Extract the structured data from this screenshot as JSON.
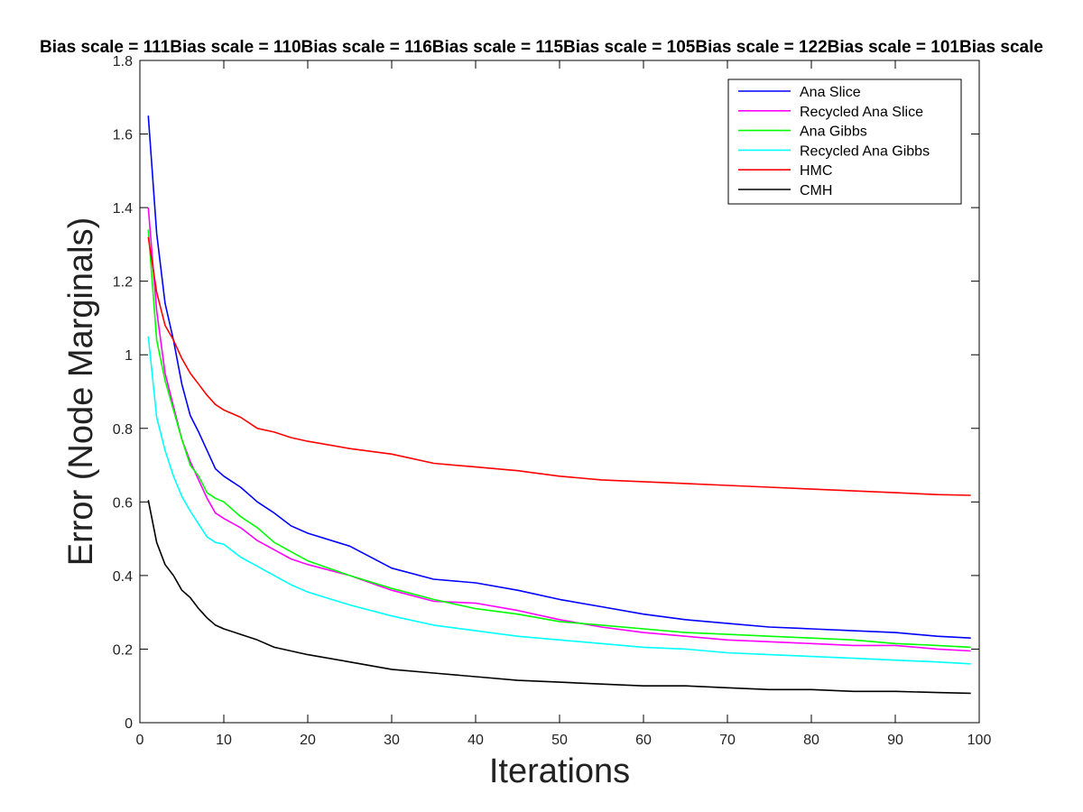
{
  "chart_data": {
    "type": "line",
    "title": "Bias scale = 111Bias scale = 110Bias scale = 116Bias scale = 115Bias scale = 105Bias scale = 122Bias scale = 101Bias scale",
    "xlabel": "Iterations",
    "ylabel": "Error (Node Marginals)",
    "xlim": [
      0,
      100
    ],
    "ylim": [
      0,
      1.8
    ],
    "xticks": [
      "0",
      "10",
      "20",
      "30",
      "40",
      "50",
      "60",
      "70",
      "80",
      "90",
      "100"
    ],
    "yticks": [
      "0",
      "0.2",
      "0.4",
      "0.6",
      "0.8",
      "1",
      "1.2",
      "1.4",
      "1.6",
      "1.8"
    ],
    "grid": false,
    "legend_position": "top-right",
    "x": [
      1,
      2,
      3,
      4,
      5,
      6,
      7,
      8,
      9,
      10,
      12,
      14,
      16,
      18,
      20,
      25,
      30,
      35,
      40,
      45,
      50,
      55,
      60,
      65,
      70,
      75,
      80,
      85,
      90,
      95,
      99
    ],
    "series": [
      {
        "name": "Ana Slice",
        "color": "#0000ff",
        "values": [
          1.65,
          1.33,
          1.14,
          1.04,
          0.92,
          0.835,
          0.79,
          0.74,
          0.69,
          0.67,
          0.64,
          0.6,
          0.57,
          0.535,
          0.515,
          0.48,
          0.42,
          0.39,
          0.38,
          0.36,
          0.335,
          0.315,
          0.295,
          0.28,
          0.27,
          0.26,
          0.255,
          0.25,
          0.245,
          0.235,
          0.23
        ]
      },
      {
        "name": "Recycled Ana Slice",
        "color": "#ff00ff",
        "values": [
          1.4,
          1.12,
          0.95,
          0.86,
          0.77,
          0.71,
          0.66,
          0.61,
          0.57,
          0.555,
          0.53,
          0.495,
          0.47,
          0.445,
          0.43,
          0.4,
          0.36,
          0.33,
          0.325,
          0.305,
          0.28,
          0.26,
          0.245,
          0.235,
          0.225,
          0.22,
          0.215,
          0.21,
          0.21,
          0.2,
          0.195
        ]
      },
      {
        "name": "Ana Gibbs",
        "color": "#00ff00",
        "values": [
          1.34,
          1.04,
          0.93,
          0.85,
          0.77,
          0.7,
          0.67,
          0.625,
          0.61,
          0.6,
          0.56,
          0.53,
          0.49,
          0.465,
          0.44,
          0.4,
          0.365,
          0.335,
          0.31,
          0.295,
          0.275,
          0.265,
          0.255,
          0.245,
          0.24,
          0.235,
          0.23,
          0.225,
          0.215,
          0.21,
          0.205
        ]
      },
      {
        "name": "Recycled Ana Gibbs",
        "color": "#00ffff",
        "values": [
          1.05,
          0.83,
          0.74,
          0.67,
          0.615,
          0.575,
          0.54,
          0.505,
          0.49,
          0.485,
          0.45,
          0.425,
          0.4,
          0.375,
          0.355,
          0.32,
          0.29,
          0.265,
          0.25,
          0.235,
          0.225,
          0.215,
          0.205,
          0.2,
          0.19,
          0.185,
          0.18,
          0.175,
          0.17,
          0.165,
          0.16
        ]
      },
      {
        "name": "HMC",
        "color": "#ff0000",
        "values": [
          1.32,
          1.17,
          1.08,
          1.04,
          0.99,
          0.95,
          0.92,
          0.89,
          0.865,
          0.85,
          0.83,
          0.8,
          0.79,
          0.775,
          0.765,
          0.745,
          0.73,
          0.705,
          0.695,
          0.685,
          0.67,
          0.66,
          0.655,
          0.65,
          0.645,
          0.64,
          0.635,
          0.63,
          0.625,
          0.62,
          0.618
        ]
      },
      {
        "name": "CMH",
        "color": "#000000",
        "values": [
          0.605,
          0.49,
          0.43,
          0.4,
          0.36,
          0.34,
          0.31,
          0.285,
          0.265,
          0.255,
          0.24,
          0.225,
          0.205,
          0.195,
          0.185,
          0.165,
          0.145,
          0.135,
          0.125,
          0.115,
          0.11,
          0.105,
          0.1,
          0.1,
          0.095,
          0.09,
          0.09,
          0.085,
          0.085,
          0.082,
          0.08
        ]
      }
    ]
  }
}
